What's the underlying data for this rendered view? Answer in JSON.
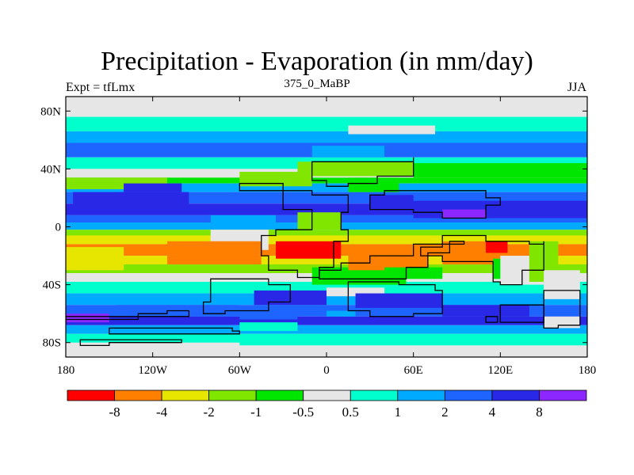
{
  "title": "Precipitation - Evaporation (in mm/day)",
  "left_string": "Expt = tfLmx",
  "center_string": "375_0_MaBP",
  "right_string": "JJA",
  "chart_data": {
    "type": "heatmap",
    "title": "Precipitation - Evaporation (in mm/day)",
    "xlim": [
      -180,
      180
    ],
    "ylim": [
      -90,
      90
    ],
    "x_ticks": [
      {
        "value": -180,
        "label": "180"
      },
      {
        "value": -120,
        "label": "120W"
      },
      {
        "value": -60,
        "label": "60W"
      },
      {
        "value": 0,
        "label": "0"
      },
      {
        "value": 60,
        "label": "60E"
      },
      {
        "value": 120,
        "label": "120E"
      },
      {
        "value": 180,
        "label": "180"
      }
    ],
    "y_ticks": [
      {
        "value": 80,
        "label": "80N"
      },
      {
        "value": 40,
        "label": "40N"
      },
      {
        "value": 0,
        "label": "0"
      },
      {
        "value": -40,
        "label": "40S"
      },
      {
        "value": -80,
        "label": "80S"
      }
    ],
    "colorbar": {
      "colors": [
        "#ff0000",
        "#ff8000",
        "#e6e600",
        "#80e600",
        "#00e600",
        "#e6e6e6",
        "#00ffcc",
        "#00aaff",
        "#1e64ff",
        "#2828e6",
        "#8c28ff"
      ],
      "levels": [
        {
          "value": -8,
          "label": "-8"
        },
        {
          "value": -4,
          "label": "-4"
        },
        {
          "value": -2,
          "label": "-2"
        },
        {
          "value": -1,
          "label": "-1"
        },
        {
          "value": -0.5,
          "label": "-0.5"
        },
        {
          "value": 0.5,
          "label": "0.5"
        },
        {
          "value": 1,
          "label": "1"
        },
        {
          "value": 2,
          "label": "2"
        },
        {
          "value": 4,
          "label": "4"
        },
        {
          "value": 8,
          "label": "8"
        }
      ]
    },
    "zonal_bands": [
      {
        "lat": [
          76,
          90
        ],
        "class": 5
      },
      {
        "lat": [
          66,
          76
        ],
        "class": 6
      },
      {
        "lat": [
          58,
          66
        ],
        "class": 7
      },
      {
        "lat": [
          48,
          58
        ],
        "class": 8
      },
      {
        "lat": [
          40,
          48
        ],
        "class": 6
      },
      {
        "lat": [
          34,
          40
        ],
        "class": 5
      },
      {
        "lat": [
          30,
          34
        ],
        "class": 4
      },
      {
        "lat": [
          24,
          30
        ],
        "class": 7
      },
      {
        "lat": [
          16,
          24
        ],
        "class": 8
      },
      {
        "lat": [
          8,
          16
        ],
        "class": 9
      },
      {
        "lat": [
          3,
          8
        ],
        "class": 8
      },
      {
        "lat": [
          -2,
          3
        ],
        "class": 7
      },
      {
        "lat": [
          -6,
          -2
        ],
        "class": 3
      },
      {
        "lat": [
          -12,
          -6
        ],
        "class": 2
      },
      {
        "lat": [
          -20,
          -12
        ],
        "class": 1
      },
      {
        "lat": [
          -26,
          -20
        ],
        "class": 2
      },
      {
        "lat": [
          -32,
          -26
        ],
        "class": 3
      },
      {
        "lat": [
          -38,
          -32
        ],
        "class": 5
      },
      {
        "lat": [
          -46,
          -38
        ],
        "class": 6
      },
      {
        "lat": [
          -54,
          -46
        ],
        "class": 7
      },
      {
        "lat": [
          -62,
          -54
        ],
        "class": 8
      },
      {
        "lat": [
          -68,
          -62
        ],
        "class": 9
      },
      {
        "lat": [
          -74,
          -68
        ],
        "class": 7
      },
      {
        "lat": [
          -82,
          -74
        ],
        "class": 6
      },
      {
        "lat": [
          -90,
          -82
        ],
        "class": 5
      }
    ],
    "patches": [
      {
        "lon": [
          -180,
          180
        ],
        "lat": [
          84,
          90
        ],
        "class": 5
      },
      {
        "lon": [
          15,
          75
        ],
        "lat": [
          64,
          70
        ],
        "class": 5
      },
      {
        "lon": [
          -10,
          40
        ],
        "lat": [
          48,
          56
        ],
        "class": 7
      },
      {
        "lon": [
          -20,
          60
        ],
        "lat": [
          35,
          45
        ],
        "class": 3
      },
      {
        "lon": [
          60,
          180
        ],
        "lat": [
          34,
          44
        ],
        "class": 4
      },
      {
        "lon": [
          -60,
          -10
        ],
        "lat": [
          28,
          38
        ],
        "class": 3
      },
      {
        "lon": [
          -180,
          -110
        ],
        "lat": [
          26,
          34
        ],
        "class": 3
      },
      {
        "lon": [
          -175,
          -95
        ],
        "lat": [
          14,
          24
        ],
        "class": 9
      },
      {
        "lon": [
          -140,
          -100
        ],
        "lat": [
          24,
          30
        ],
        "class": 9
      },
      {
        "lon": [
          15,
          50
        ],
        "lat": [
          24,
          34
        ],
        "class": 4
      },
      {
        "lon": [
          30,
          60
        ],
        "lat": [
          12,
          22
        ],
        "class": 9
      },
      {
        "lon": [
          60,
          180
        ],
        "lat": [
          6,
          18
        ],
        "class": 9
      },
      {
        "lon": [
          80,
          110
        ],
        "lat": [
          6,
          12
        ],
        "class": 10
      },
      {
        "lon": [
          -80,
          -35
        ],
        "lat": [
          0,
          8
        ],
        "class": 7
      },
      {
        "lon": [
          -20,
          10
        ],
        "lat": [
          -2,
          10
        ],
        "class": 3
      },
      {
        "lon": [
          -80,
          -40
        ],
        "lat": [
          -16,
          -2
        ],
        "class": 5
      },
      {
        "lon": [
          -10,
          55
        ],
        "lat": [
          -40,
          -28
        ],
        "class": 4
      },
      {
        "lon": [
          0,
          40
        ],
        "lat": [
          -48,
          -42
        ],
        "class": 5
      },
      {
        "lon": [
          -110,
          -45
        ],
        "lat": [
          -26,
          -10
        ],
        "class": 1
      },
      {
        "lon": [
          -35,
          10
        ],
        "lat": [
          -22,
          -10
        ],
        "class": 0
      },
      {
        "lon": [
          15,
          70
        ],
        "lat": [
          -30,
          -14
        ],
        "class": 1
      },
      {
        "lon": [
          40,
          80
        ],
        "lat": [
          -36,
          -28
        ],
        "class": 4
      },
      {
        "lon": [
          80,
          120
        ],
        "lat": [
          -26,
          -10
        ],
        "class": 1
      },
      {
        "lon": [
          110,
          125
        ],
        "lat": [
          -18,
          -10
        ],
        "class": 0
      },
      {
        "lon": [
          115,
          135
        ],
        "lat": [
          -36,
          -22
        ],
        "class": 4
      },
      {
        "lon": [
          120,
          150
        ],
        "lat": [
          -40,
          -20
        ],
        "class": 5
      },
      {
        "lon": [
          140,
          160
        ],
        "lat": [
          -38,
          -10
        ],
        "class": 3
      },
      {
        "lon": [
          150,
          175
        ],
        "lat": [
          -50,
          -30
        ],
        "class": 5
      },
      {
        "lon": [
          -180,
          -140
        ],
        "lat": [
          -30,
          -14
        ],
        "class": 2
      },
      {
        "lon": [
          -180,
          -150
        ],
        "lat": [
          -66,
          -60
        ],
        "class": 10
      },
      {
        "lon": [
          -145,
          -60
        ],
        "lat": [
          -62,
          -54
        ],
        "class": 8
      },
      {
        "lon": [
          -50,
          0
        ],
        "lat": [
          -54,
          -44
        ],
        "class": 9
      },
      {
        "lon": [
          -60,
          -20
        ],
        "lat": [
          -64,
          -58
        ],
        "class": 8
      },
      {
        "lon": [
          0,
          20
        ],
        "lat": [
          -62,
          -58
        ],
        "class": 7
      },
      {
        "lon": [
          20,
          80
        ],
        "lat": [
          -56,
          -46
        ],
        "class": 9
      },
      {
        "lon": [
          80,
          140
        ],
        "lat": [
          -62,
          -54
        ],
        "class": 9
      },
      {
        "lon": [
          150,
          175
        ],
        "lat": [
          -70,
          -62
        ],
        "class": 5
      },
      {
        "lon": [
          -60,
          -20
        ],
        "lat": [
          -72,
          -66
        ],
        "class": 6
      },
      {
        "lon": [
          -180,
          -60
        ],
        "lat": [
          -86,
          -80
        ],
        "class": 5
      }
    ],
    "coastlines": [
      [
        [
          -60,
          30
        ],
        [
          -40,
          30
        ],
        [
          -30,
          12
        ],
        [
          -10,
          8
        ],
        [
          -10,
          -2
        ],
        [
          -35,
          -6
        ],
        [
          -45,
          -20
        ],
        [
          -40,
          -30
        ],
        [
          -20,
          -35
        ],
        [
          -5,
          -28
        ],
        [
          5,
          -10
        ],
        [
          15,
          -2
        ],
        [
          10,
          10
        ],
        [
          15,
          22
        ],
        [
          -10,
          25
        ],
        [
          -60,
          30
        ]
      ],
      [
        [
          -10,
          45
        ],
        [
          20,
          45
        ],
        [
          60,
          48
        ],
        [
          60,
          35
        ],
        [
          35,
          30
        ],
        [
          15,
          28
        ],
        [
          0,
          32
        ],
        [
          -10,
          45
        ]
      ],
      [
        [
          30,
          12
        ],
        [
          50,
          12
        ],
        [
          60,
          10
        ],
        [
          80,
          6
        ],
        [
          95,
          6
        ],
        [
          110,
          15
        ],
        [
          120,
          20
        ],
        [
          110,
          25
        ],
        [
          70,
          25
        ],
        [
          40,
          22
        ],
        [
          30,
          12
        ]
      ],
      [
        [
          -5,
          -36
        ],
        [
          30,
          -36
        ],
        [
          55,
          -28
        ],
        [
          70,
          -18
        ],
        [
          85,
          -10
        ],
        [
          95,
          -12
        ],
        [
          60,
          -20
        ],
        [
          30,
          -25
        ],
        [
          10,
          -30
        ],
        [
          -5,
          -36
        ]
      ],
      [
        [
          65,
          -14
        ],
        [
          80,
          -6
        ],
        [
          95,
          -6
        ],
        [
          110,
          -10
        ],
        [
          125,
          -10
        ],
        [
          140,
          -12
        ],
        [
          150,
          -10
        ],
        [
          150,
          -30
        ],
        [
          135,
          -40
        ],
        [
          120,
          -38
        ],
        [
          115,
          -24
        ],
        [
          100,
          -24
        ],
        [
          80,
          -20
        ],
        [
          65,
          -14
        ]
      ],
      [
        [
          -80,
          -36
        ],
        [
          -60,
          -36
        ],
        [
          -40,
          -40
        ],
        [
          -25,
          -52
        ],
        [
          -40,
          -58
        ],
        [
          -70,
          -60
        ],
        [
          -85,
          -52
        ],
        [
          -80,
          -36
        ]
      ],
      [
        [
          15,
          -38
        ],
        [
          50,
          -40
        ],
        [
          75,
          -44
        ],
        [
          80,
          -60
        ],
        [
          60,
          -62
        ],
        [
          30,
          -58
        ],
        [
          15,
          -50
        ],
        [
          15,
          -38
        ]
      ],
      [
        [
          -180,
          -62
        ],
        [
          -150,
          -62
        ],
        [
          -130,
          -60
        ],
        [
          -110,
          -58
        ],
        [
          -95,
          -62
        ],
        [
          -130,
          -64
        ],
        [
          -180,
          -66
        ],
        [
          -180,
          -62
        ]
      ],
      [
        [
          -150,
          -70
        ],
        [
          -100,
          -70
        ],
        [
          -65,
          -72
        ],
        [
          -60,
          -74
        ],
        [
          -110,
          -74
        ],
        [
          -150,
          -74
        ],
        [
          -150,
          -70
        ]
      ],
      [
        [
          -170,
          -78
        ],
        [
          -120,
          -78
        ],
        [
          -100,
          -80
        ],
        [
          -150,
          -82
        ],
        [
          -170,
          -80
        ],
        [
          -170,
          -78
        ]
      ],
      [
        [
          150,
          -44
        ],
        [
          175,
          -44
        ],
        [
          175,
          -68
        ],
        [
          160,
          -70
        ],
        [
          150,
          -62
        ],
        [
          150,
          -44
        ]
      ],
      [
        [
          120,
          -54
        ],
        [
          145,
          -54
        ],
        [
          150,
          -66
        ],
        [
          125,
          -66
        ],
        [
          120,
          -54
        ]
      ],
      [
        [
          110,
          -62
        ],
        [
          118,
          -62
        ],
        [
          118,
          -66
        ],
        [
          110,
          -66
        ],
        [
          110,
          -62
        ]
      ]
    ]
  }
}
